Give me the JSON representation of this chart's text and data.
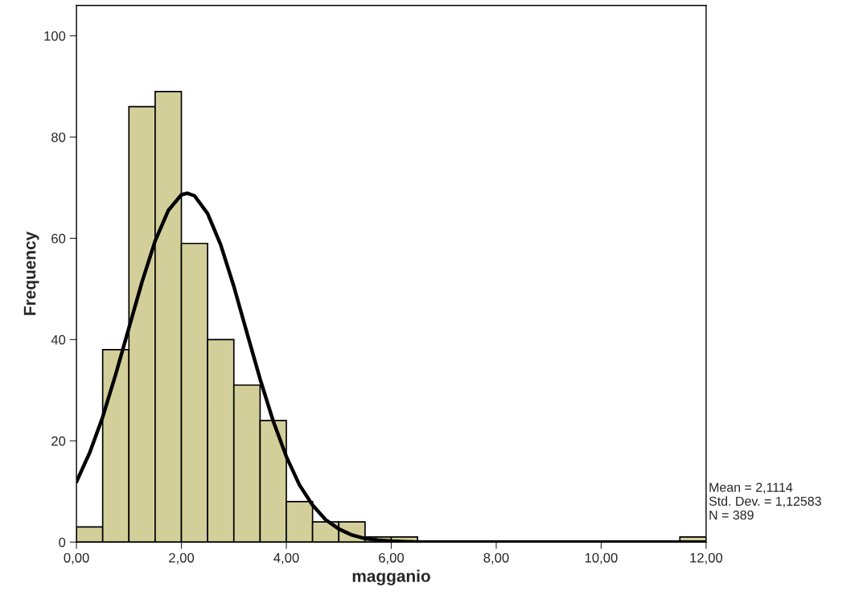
{
  "chart_data": {
    "type": "histogram",
    "xlabel": "magganio",
    "ylabel": "Frequency",
    "bins": [
      0,
      0.5,
      1,
      1.5,
      2,
      2.5,
      3,
      3.5,
      4,
      4.5,
      5,
      5.5,
      6,
      6.5,
      7,
      7.5,
      8,
      8.5,
      9,
      9.5,
      10,
      10.5,
      11,
      11.5,
      12
    ],
    "values": [
      3,
      38,
      86,
      89,
      59,
      40,
      31,
      24,
      8,
      4,
      4,
      1,
      1,
      0,
      0,
      0,
      0,
      0,
      0,
      0,
      0,
      0,
      0,
      1
    ],
    "color": "#d3cf9a",
    "series": [
      {
        "type": "line",
        "color": "#000000",
        "x": [
          0,
          0.25,
          0.5,
          0.75,
          1,
          1.25,
          1.5,
          1.75,
          2,
          2.1114,
          2.25,
          2.5,
          2.75,
          3,
          3.25,
          3.5,
          3.75,
          4,
          4.25,
          4.5,
          4.75,
          5,
          5.25,
          5.5,
          5.75,
          6,
          6.5,
          8,
          10,
          12
        ],
        "values": [
          11.9,
          17.6,
          24.7,
          33.2,
          42.3,
          51.4,
          59.5,
          65.5,
          68.6,
          68.9,
          68.4,
          64.9,
          58.7,
          50.5,
          41.3,
          32.2,
          23.9,
          16.9,
          11.3,
          7.3,
          4.4,
          2.6,
          1.4,
          0.7,
          0.4,
          0.2,
          0,
          0,
          0,
          0
        ]
      }
    ],
    "xlim": [
      0,
      12
    ],
    "ylim": [
      0,
      106
    ],
    "xticks": [
      {
        "value": 0,
        "label": "0,00"
      },
      {
        "value": 2,
        "label": "2,00"
      },
      {
        "value": 4,
        "label": "4,00"
      },
      {
        "value": 6,
        "label": "6,00"
      },
      {
        "value": 8,
        "label": "8,00"
      },
      {
        "value": 10,
        "label": "10,00"
      },
      {
        "value": 12,
        "label": "12,00"
      }
    ],
    "yticks": [
      0,
      20,
      40,
      60,
      80,
      100
    ],
    "annotations": [
      "Mean = 2,1114",
      "Std. Dev. = 1,12583",
      "N = 389"
    ],
    "grid": false,
    "legend": false
  }
}
